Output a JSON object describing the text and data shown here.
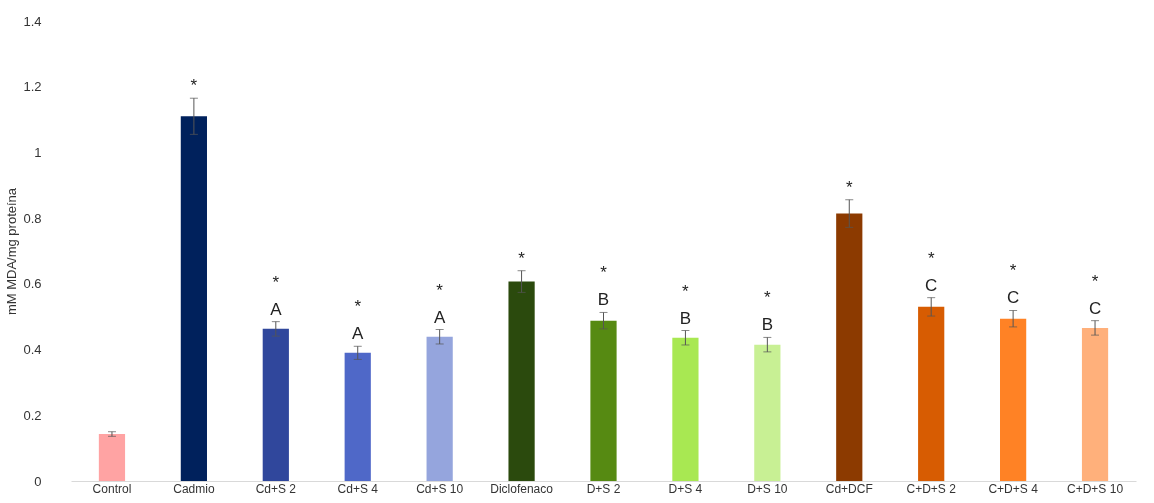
{
  "chart_data": {
    "type": "bar",
    "ylabel": "mM MDA/mg proteína",
    "categories": [
      "Control",
      "Cadmio",
      "Cd+S 2",
      "Cd+S 4",
      "Cd+S 10",
      "Diclofenaco",
      "D+S 2",
      "D+S 4",
      "D+S 10",
      "Cd+DCF",
      "C+D+S 2",
      "C+D+S 4",
      "C+D+S 10"
    ],
    "values": [
      0.143,
      1.11,
      0.463,
      0.39,
      0.439,
      0.607,
      0.488,
      0.436,
      0.415,
      0.814,
      0.53,
      0.494,
      0.466
    ],
    "errors": [
      0.007,
      0.055,
      0.022,
      0.02,
      0.022,
      0.033,
      0.025,
      0.022,
      0.022,
      0.042,
      0.028,
      0.025,
      0.022
    ],
    "colors": [
      "#ffa3a3",
      "#00215c",
      "#30479c",
      "#4f68c8",
      "#95a5dd",
      "#2b4a0d",
      "#568a12",
      "#a8e852",
      "#c8f094",
      "#8c3a00",
      "#d75c02",
      "#ff8225",
      "#ffb07b"
    ],
    "ylim": [
      0,
      1.4
    ],
    "yticks": [
      0,
      0.2,
      0.4,
      0.6,
      0.8,
      1,
      1.2,
      1.4
    ],
    "grid": false,
    "annotations": [
      {
        "text": "*",
        "x": "Cadmio",
        "y": 1.11
      },
      {
        "text": "A",
        "x": "Cd+S 2",
        "y": 0.463
      },
      {
        "text": "*",
        "x": "Cd+S 2",
        "y": 0.463
      },
      {
        "text": "A",
        "x": "Cd+S 4",
        "y": 0.39
      },
      {
        "text": "*",
        "x": "Cd+S 4",
        "y": 0.39
      },
      {
        "text": "A",
        "x": "Cd+S 10",
        "y": 0.439
      },
      {
        "text": "*",
        "x": "Cd+S 10",
        "y": 0.439
      },
      {
        "text": "*",
        "x": "Diclofenaco",
        "y": 0.607
      },
      {
        "text": "B",
        "x": "D+S 2",
        "y": 0.488
      },
      {
        "text": "*",
        "x": "D+S 2",
        "y": 0.488
      },
      {
        "text": "B",
        "x": "D+S 4",
        "y": 0.436
      },
      {
        "text": "*",
        "x": "D+S 4",
        "y": 0.436
      },
      {
        "text": "B",
        "x": "D+S 10",
        "y": 0.415
      },
      {
        "text": "*",
        "x": "D+S 10",
        "y": 0.415
      },
      {
        "text": "*",
        "x": "Cd+DCF",
        "y": 0.814
      },
      {
        "text": "C",
        "x": "C+D+S 2",
        "y": 0.53
      },
      {
        "text": "*",
        "x": "C+D+S 2",
        "y": 0.53
      },
      {
        "text": "C",
        "x": "C+D+S 4",
        "y": 0.494
      },
      {
        "text": "*",
        "x": "C+D+S 4",
        "y": 0.494
      },
      {
        "text": "C",
        "x": "C+D+S 10",
        "y": 0.466
      },
      {
        "text": "*",
        "x": "C+D+S 10",
        "y": 0.466
      }
    ]
  }
}
